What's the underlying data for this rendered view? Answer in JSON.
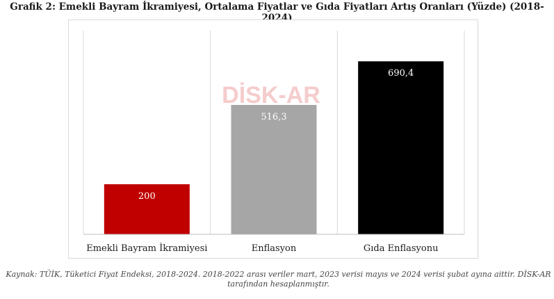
{
  "chart_data": {
    "type": "bar",
    "title": "Grafik 2: Emekli Bayram İkramiyesi, Ortalama Fiyatlar ve Gıda Fiyatları Artış Oranları (Yüzde) (2018-2024)",
    "categories": [
      "Emekli Bayram İkramiyesi",
      "Enflasyon",
      "Gıda Enflasyonu"
    ],
    "values": [
      200,
      516.3,
      690.4
    ],
    "value_labels": [
      "200",
      "516,3",
      "690,4"
    ],
    "colors": [
      "#c00000",
      "#a6a6a6",
      "#000000"
    ],
    "label_color": "#ffffff",
    "ylim": [
      0,
      800
    ],
    "xlabel": "",
    "ylabel": "",
    "grid": "vertical separators",
    "legend": "none"
  },
  "watermark": {
    "text": "DİSK-AR",
    "color": "#f4c7c7"
  },
  "source_note": "Kaynak: TÜİK, Tüketici Fiyat Endeksi, 2018-2024. 2018-2022 arası veriler mart, 2023 verisi mayıs ve 2024 verisi şubat ayına aittir.  DİSK-AR tarafından hesaplanmıştır."
}
